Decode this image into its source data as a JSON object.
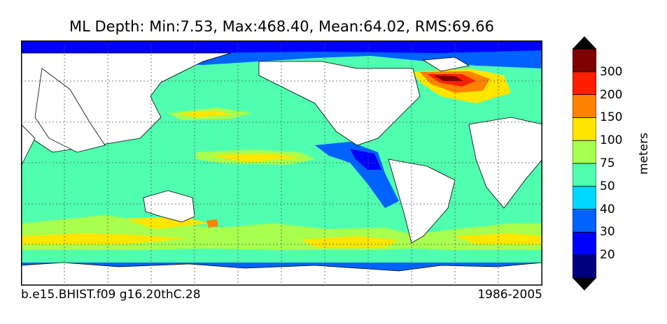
{
  "title": "ML Depth: Min:7.53, Max:468.40, Mean:64.02, RMS:69.66",
  "footer": {
    "case_name": "b.e15.BHIST.f09 g16.20thC.28",
    "period": "1986-2005"
  },
  "colorbar": {
    "label": "meters",
    "ticks": [
      "20",
      "30",
      "40",
      "50",
      "75",
      "100",
      "150",
      "200",
      "300"
    ],
    "bins": [
      {
        "color": "#00007f"
      },
      {
        "color": "#0000ff"
      },
      {
        "color": "#0062ff"
      },
      {
        "color": "#00d8ff"
      },
      {
        "color": "#4fffaf"
      },
      {
        "color": "#a8ff4e"
      },
      {
        "color": "#ffe500"
      },
      {
        "color": "#ff8200"
      },
      {
        "color": "#ff1e00"
      },
      {
        "color": "#7f0000"
      }
    ],
    "under_color": "#000000",
    "over_color": "#000000"
  },
  "map": {
    "projection": "cylindrical, 30E to 30E",
    "gridlines": true,
    "land_color": "#ffffff",
    "coastline_color": "#000000"
  }
}
